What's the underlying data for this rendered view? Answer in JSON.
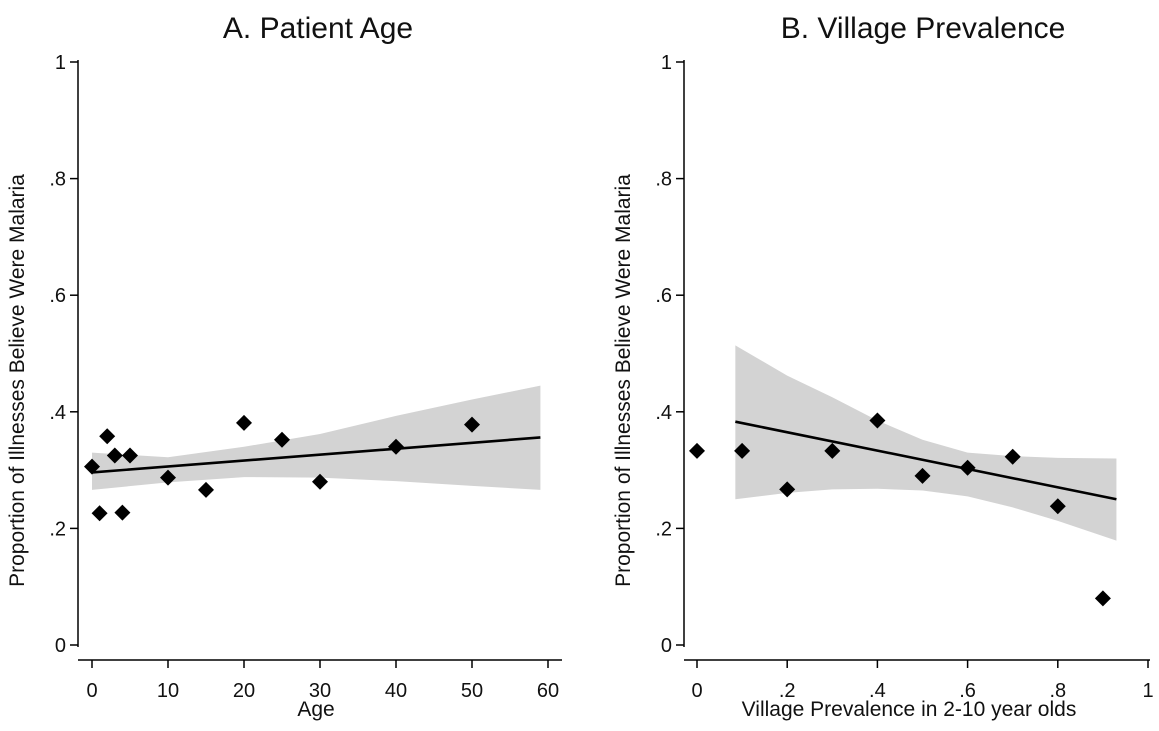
{
  "chart_data": [
    {
      "type": "scatter",
      "title": "A. Patient Age",
      "xlabel": "Age",
      "ylabel": "Proportion of Illnesses Believe Were Malaria",
      "xlim": [
        0,
        60
      ],
      "ylim": [
        0,
        1
      ],
      "x_ticks": [
        0,
        10,
        20,
        30,
        40,
        50,
        60
      ],
      "x_tick_labels": [
        "0",
        "10",
        "20",
        "30",
        "40",
        "50",
        "60"
      ],
      "y_ticks": [
        0,
        0.2,
        0.4,
        0.6,
        0.8,
        1
      ],
      "y_tick_labels": [
        "0",
        ".2",
        ".4",
        ".6",
        ".8",
        "1"
      ],
      "grid": false,
      "series": [
        {
          "type": "scatter",
          "marker": "diamond",
          "x": [
            0,
            1,
            2,
            3,
            4,
            5,
            10,
            15,
            20,
            25,
            30,
            40,
            50
          ],
          "y": [
            0.306,
            0.226,
            0.358,
            0.325,
            0.227,
            0.325,
            0.287,
            0.266,
            0.381,
            0.352,
            0.28,
            0.34,
            0.378
          ]
        },
        {
          "type": "line",
          "x": [
            0,
            59
          ],
          "y": [
            0.296,
            0.356
          ]
        },
        {
          "type": "band",
          "x": [
            0,
            10,
            20,
            30,
            40,
            50,
            59
          ],
          "lower": [
            0.266,
            0.279,
            0.288,
            0.287,
            0.281,
            0.273,
            0.266
          ],
          "upper": [
            0.33,
            0.322,
            0.34,
            0.362,
            0.393,
            0.421,
            0.445
          ]
        }
      ],
      "colors": {
        "marker": "#000000",
        "fit_line": "#000000",
        "ci_band": "#d3d3d3"
      }
    },
    {
      "type": "scatter",
      "title": "B. Village Prevalence",
      "xlabel": "Village Prevalence in 2-10 year olds",
      "ylabel": "Proportion of Illnesses Believe Were Malaria",
      "xlim": [
        0,
        1
      ],
      "ylim": [
        0,
        1
      ],
      "x_ticks": [
        0,
        0.2,
        0.4,
        0.6,
        0.8,
        1
      ],
      "x_tick_labels": [
        "0",
        ".2",
        ".4",
        ".6",
        ".8",
        "1"
      ],
      "y_ticks": [
        0,
        0.2,
        0.4,
        0.6,
        0.8,
        1
      ],
      "y_tick_labels": [
        "0",
        ".2",
        ".4",
        ".6",
        ".8",
        "1"
      ],
      "grid": false,
      "series": [
        {
          "type": "scatter",
          "marker": "diamond",
          "x": [
            0,
            0.1,
            0.2,
            0.3,
            0.4,
            0.5,
            0.6,
            0.7,
            0.8,
            0.9
          ],
          "y": [
            0.333,
            0.333,
            0.267,
            0.333,
            0.385,
            0.29,
            0.304,
            0.323,
            0.238,
            0.08
          ]
        },
        {
          "type": "line",
          "x": [
            0.085,
            0.93
          ],
          "y": [
            0.383,
            0.25
          ]
        },
        {
          "type": "band",
          "x": [
            0.085,
            0.2,
            0.3,
            0.4,
            0.5,
            0.6,
            0.7,
            0.8,
            0.93
          ],
          "lower": [
            0.25,
            0.261,
            0.267,
            0.268,
            0.265,
            0.255,
            0.236,
            0.213,
            0.179
          ],
          "upper": [
            0.514,
            0.462,
            0.425,
            0.385,
            0.352,
            0.33,
            0.324,
            0.321,
            0.32
          ]
        }
      ],
      "colors": {
        "marker": "#000000",
        "fit_line": "#000000",
        "ci_band": "#d3d3d3"
      }
    }
  ]
}
